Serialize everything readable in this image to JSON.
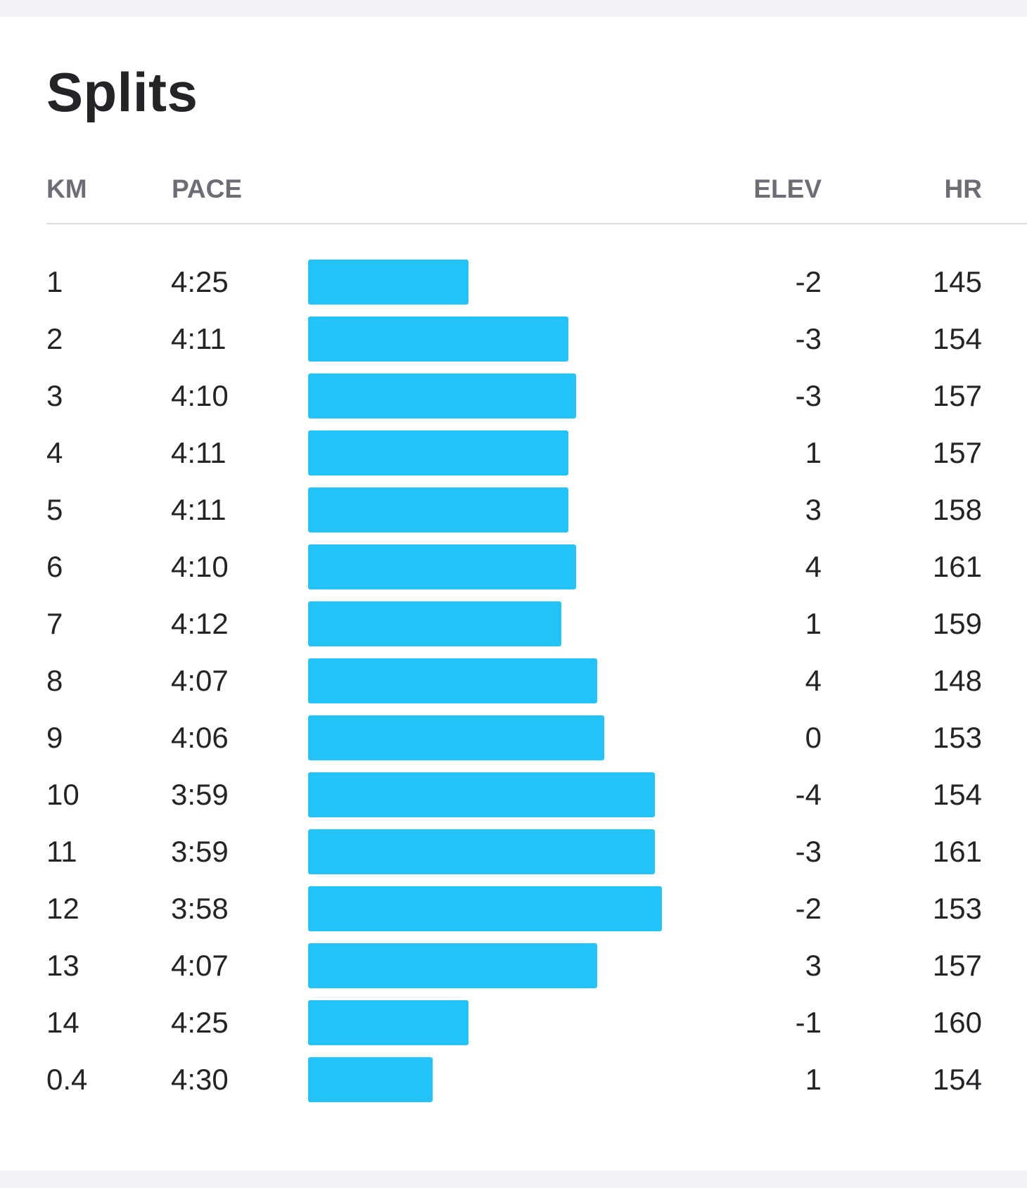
{
  "title": "Splits",
  "headers": {
    "km": "KM",
    "pace": "PACE",
    "elev": "ELEV",
    "hr": "HR"
  },
  "colors": {
    "bar": "#22c3fb",
    "text": "#242428",
    "header": "#6d6d78",
    "background": "#f2f2f7",
    "card": "#ffffff"
  },
  "splits": [
    {
      "km": "1",
      "pace": "4:25",
      "elev": "-2",
      "hr": "145"
    },
    {
      "km": "2",
      "pace": "4:11",
      "elev": "-3",
      "hr": "154"
    },
    {
      "km": "3",
      "pace": "4:10",
      "elev": "-3",
      "hr": "157"
    },
    {
      "km": "4",
      "pace": "4:11",
      "elev": "1",
      "hr": "157"
    },
    {
      "km": "5",
      "pace": "4:11",
      "elev": "3",
      "hr": "158"
    },
    {
      "km": "6",
      "pace": "4:10",
      "elev": "4",
      "hr": "161"
    },
    {
      "km": "7",
      "pace": "4:12",
      "elev": "1",
      "hr": "159"
    },
    {
      "km": "8",
      "pace": "4:07",
      "elev": "4",
      "hr": "148"
    },
    {
      "km": "9",
      "pace": "4:06",
      "elev": "0",
      "hr": "153"
    },
    {
      "km": "10",
      "pace": "3:59",
      "elev": "-4",
      "hr": "154"
    },
    {
      "km": "11",
      "pace": "3:59",
      "elev": "-3",
      "hr": "161"
    },
    {
      "km": "12",
      "pace": "3:58",
      "elev": "-2",
      "hr": "153"
    },
    {
      "km": "13",
      "pace": "4:07",
      "elev": "3",
      "hr": "157"
    },
    {
      "km": "14",
      "pace": "4:25",
      "elev": "-1",
      "hr": "160"
    },
    {
      "km": "0.4",
      "pace": "4:30",
      "elev": "1",
      "hr": "154"
    }
  ]
}
